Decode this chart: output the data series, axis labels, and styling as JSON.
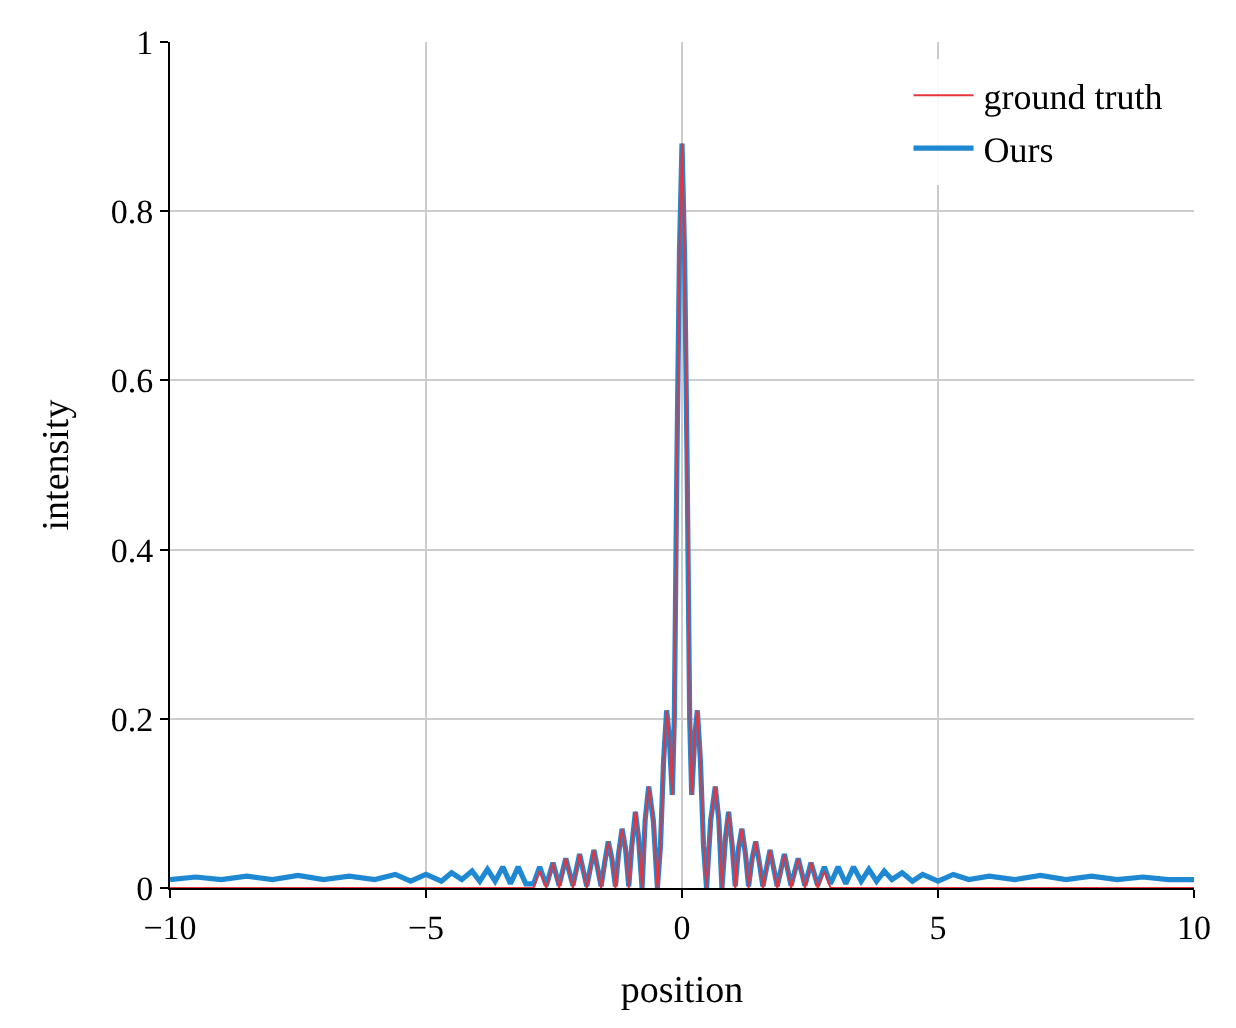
{
  "chart_data": {
    "type": "line",
    "xlabel": "position",
    "ylabel": "intensity",
    "xlim": [
      -10,
      10
    ],
    "ylim": [
      0,
      1
    ],
    "xticks": [
      {
        "value": -10,
        "label": "−10"
      },
      {
        "value": -5,
        "label": "−5"
      },
      0,
      5,
      10
    ],
    "yticks": [
      0,
      0.2,
      0.4,
      0.6,
      0.8,
      1
    ],
    "grid": true,
    "legend": "top right",
    "marker": "none",
    "line_style": "solid",
    "series": [
      {
        "name": "ground truth",
        "color": "#e8333c",
        "x": [
          -10,
          -3.2,
          -2.9,
          -2.78,
          -2.65,
          -2.52,
          -2.4,
          -2.27,
          -2.13,
          -2.0,
          -1.86,
          -1.72,
          -1.58,
          -1.51,
          -1.44,
          -1.37,
          -1.3,
          -1.24,
          -1.17,
          -1.1,
          -1.04,
          -0.98,
          -0.91,
          -0.85,
          -0.78,
          -0.72,
          -0.65,
          -0.56,
          -0.48,
          -0.42,
          -0.36,
          -0.3,
          -0.25,
          -0.19,
          -0.15,
          -0.1,
          -0.05,
          0,
          0.05,
          0.1,
          0.15,
          0.19,
          0.25,
          0.3,
          0.36,
          0.42,
          0.48,
          0.56,
          0.65,
          0.72,
          0.78,
          0.85,
          0.91,
          0.98,
          1.04,
          1.1,
          1.17,
          1.24,
          1.3,
          1.37,
          1.44,
          1.51,
          1.58,
          1.72,
          1.86,
          2.0,
          2.13,
          2.27,
          2.4,
          2.52,
          2.65,
          2.78,
          2.9,
          3.2,
          10
        ],
        "values": [
          0,
          0,
          0,
          0.02,
          0,
          0.03,
          0,
          0.035,
          0,
          0.04,
          0,
          0.045,
          0,
          0.03,
          0.055,
          0.035,
          0,
          0.04,
          0.07,
          0.045,
          0,
          0.05,
          0.09,
          0.06,
          0,
          0.08,
          0.12,
          0.08,
          0,
          0.05,
          0.15,
          0.21,
          0.18,
          0.11,
          0.2,
          0.5,
          0.75,
          0.88,
          0.75,
          0.5,
          0.2,
          0.11,
          0.18,
          0.21,
          0.15,
          0.05,
          0,
          0.08,
          0.12,
          0.08,
          0,
          0.06,
          0.09,
          0.05,
          0,
          0.045,
          0.07,
          0.04,
          0,
          0.035,
          0.055,
          0.03,
          0,
          0.045,
          0,
          0.04,
          0,
          0.035,
          0,
          0.03,
          0,
          0.02,
          0,
          0,
          0
        ]
      },
      {
        "name": "Ours",
        "color": "#1f88d2",
        "x": [
          -10,
          -9.5,
          -9,
          -8.5,
          -8,
          -7.5,
          -7,
          -6.5,
          -6,
          -5.6,
          -5.3,
          -5,
          -4.7,
          -4.5,
          -4.3,
          -4.1,
          -3.95,
          -3.8,
          -3.65,
          -3.5,
          -3.35,
          -3.2,
          -3.05,
          -2.9,
          -2.78,
          -2.65,
          -2.52,
          -2.4,
          -2.27,
          -2.13,
          -2.0,
          -1.86,
          -1.72,
          -1.58,
          -1.51,
          -1.44,
          -1.37,
          -1.3,
          -1.24,
          -1.17,
          -1.1,
          -1.04,
          -0.98,
          -0.91,
          -0.85,
          -0.78,
          -0.72,
          -0.65,
          -0.56,
          -0.48,
          -0.42,
          -0.36,
          -0.3,
          -0.25,
          -0.19,
          -0.15,
          -0.1,
          -0.05,
          0,
          0.05,
          0.1,
          0.15,
          0.19,
          0.25,
          0.3,
          0.36,
          0.42,
          0.48,
          0.56,
          0.65,
          0.72,
          0.78,
          0.85,
          0.91,
          0.98,
          1.04,
          1.1,
          1.17,
          1.24,
          1.3,
          1.37,
          1.44,
          1.51,
          1.58,
          1.72,
          1.86,
          2.0,
          2.13,
          2.27,
          2.4,
          2.52,
          2.65,
          2.78,
          2.9,
          3.05,
          3.2,
          3.35,
          3.5,
          3.65,
          3.8,
          3.95,
          4.1,
          4.3,
          4.5,
          4.7,
          5,
          5.3,
          5.6,
          6,
          6.5,
          7,
          7.5,
          8,
          8.5,
          9,
          9.5,
          10
        ],
        "values": [
          0.01,
          0.013,
          0.01,
          0.014,
          0.01,
          0.015,
          0.01,
          0.014,
          0.01,
          0.016,
          0.008,
          0.016,
          0.008,
          0.018,
          0.01,
          0.02,
          0.008,
          0.022,
          0.008,
          0.025,
          0.005,
          0.025,
          0.005,
          0.005,
          0.025,
          0.003,
          0.03,
          0.003,
          0.035,
          0.003,
          0.04,
          0.002,
          0.045,
          0.002,
          0.03,
          0.055,
          0.035,
          0.002,
          0.04,
          0.07,
          0.045,
          0.002,
          0.05,
          0.09,
          0.06,
          0,
          0.08,
          0.12,
          0.08,
          0,
          0.05,
          0.15,
          0.21,
          0.18,
          0.11,
          0.2,
          0.5,
          0.75,
          0.88,
          0.75,
          0.5,
          0.2,
          0.11,
          0.18,
          0.21,
          0.15,
          0.05,
          0,
          0.08,
          0.12,
          0.08,
          0,
          0.06,
          0.09,
          0.05,
          0.002,
          0.045,
          0.07,
          0.04,
          0.002,
          0.035,
          0.055,
          0.03,
          0.002,
          0.045,
          0.002,
          0.04,
          0.003,
          0.035,
          0.003,
          0.03,
          0.003,
          0.025,
          0.005,
          0.025,
          0.005,
          0.025,
          0.008,
          0.022,
          0.008,
          0.02,
          0.01,
          0.018,
          0.008,
          0.016,
          0.008,
          0.016,
          0.01,
          0.014,
          0.01,
          0.015,
          0.01,
          0.014,
          0.01,
          0.013,
          0.01,
          0.01
        ]
      }
    ]
  }
}
